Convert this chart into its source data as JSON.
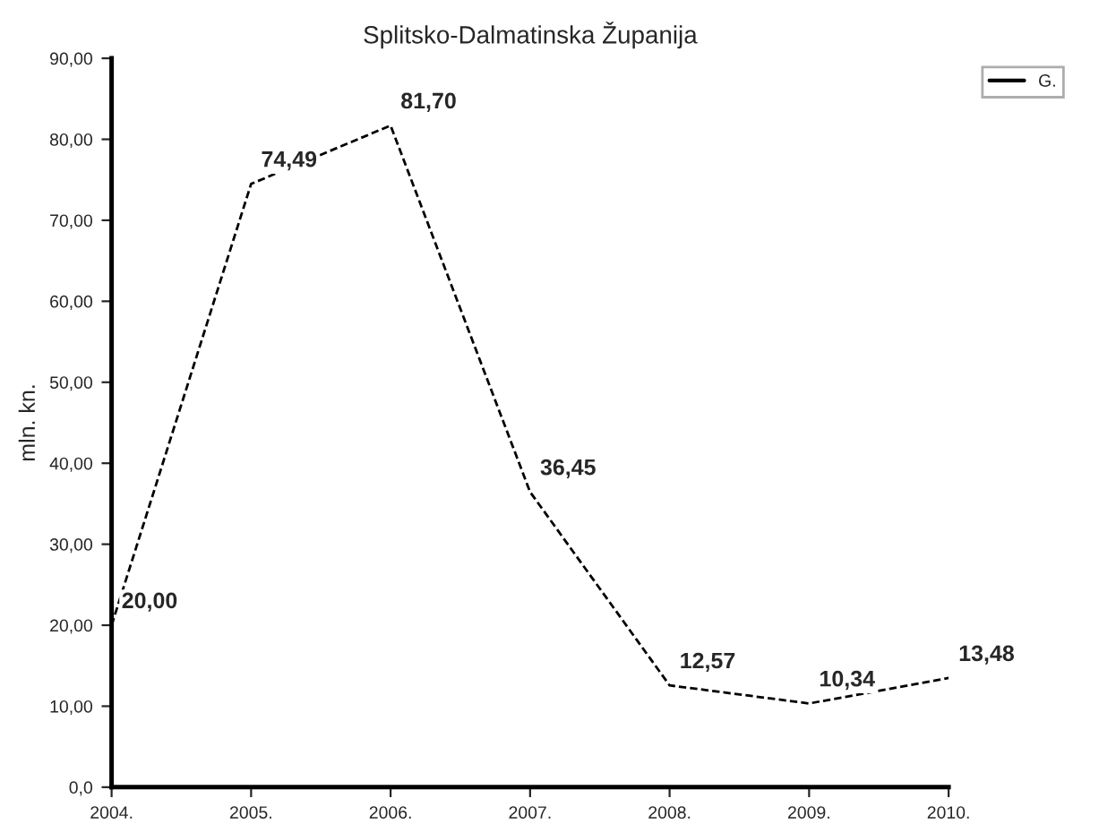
{
  "chart_data": {
    "type": "line",
    "title": "Splitsko-Dalmatinska Županija",
    "ylabel": "mln. kn.",
    "categories": [
      "2004.",
      "2005.",
      "2006.",
      "2007.",
      "2008.",
      "2009.",
      "2010."
    ],
    "series": [
      {
        "name": "G.",
        "color": "#000000",
        "values": [
          20.0,
          74.49,
          81.7,
          36.45,
          12.57,
          10.34,
          13.48
        ],
        "value_labels": [
          "20,00",
          "74,49",
          "81,70",
          "36,45",
          "12,57",
          "10,34",
          "13,48"
        ]
      }
    ],
    "ylim": [
      0,
      90
    ],
    "yticks": [
      {
        "value": 0,
        "label": "0,0"
      },
      {
        "value": 10,
        "label": "10,00"
      },
      {
        "value": 20,
        "label": "20,00"
      },
      {
        "value": 30,
        "label": "30,00"
      },
      {
        "value": 40,
        "label": "40,00"
      },
      {
        "value": 50,
        "label": "50,00"
      },
      {
        "value": 60,
        "label": "60,00"
      },
      {
        "value": 70,
        "label": "70,00"
      },
      {
        "value": 80,
        "label": "80,00"
      },
      {
        "value": 90,
        "label": "90,00"
      }
    ],
    "line_style": "dashed",
    "marker": "none",
    "grid": false,
    "legend": "top right"
  }
}
